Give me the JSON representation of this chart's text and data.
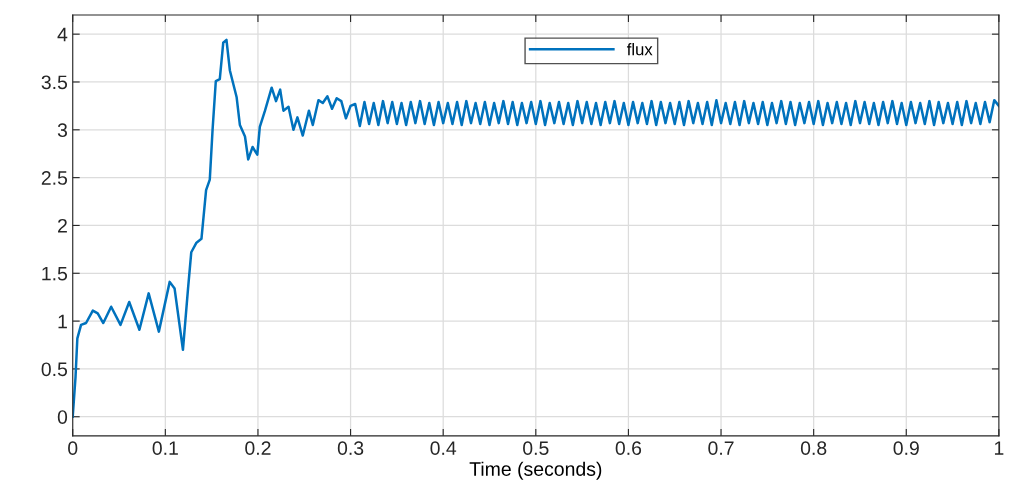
{
  "chart_data": {
    "type": "line",
    "xlabel": "Time (seconds)",
    "xlim": [
      0,
      1
    ],
    "xticks": [
      0,
      0.1,
      0.2,
      0.3,
      0.4,
      0.5,
      0.6,
      0.7,
      0.8,
      0.9,
      1
    ],
    "ylim": [
      -0.2,
      4.2
    ],
    "yticks": [
      0,
      0.5,
      1,
      1.5,
      2,
      2.5,
      3,
      3.5,
      4
    ],
    "grid": true,
    "legend": "top",
    "marker": "none",
    "line_style": "solid",
    "series": [
      {
        "name": "flux",
        "color": "#0072bd",
        "x": [
          0,
          0.003,
          0.005,
          0.009,
          0.0144,
          0.0217,
          0.027,
          0.033,
          0.0415,
          0.0516,
          0.061,
          0.072,
          0.082,
          0.093,
          0.1047,
          0.11,
          0.119,
          0.1245,
          0.128,
          0.1336,
          0.139,
          0.144,
          0.148,
          0.151,
          0.1545,
          0.1588,
          0.1625,
          0.166,
          0.1697,
          0.177,
          0.1805,
          0.186,
          0.1895,
          0.1942,
          0.1993,
          0.202,
          0.2076,
          0.2148,
          0.2195,
          0.224,
          0.2275,
          0.233,
          0.2383,
          0.2426,
          0.2484,
          0.255,
          0.2592,
          0.2653,
          0.27,
          0.275,
          0.28,
          0.285,
          0.29,
          0.295,
          0.3,
          0.305,
          0.31,
          0.315,
          0.32,
          0.325,
          0.33,
          0.335,
          0.34,
          0.345,
          0.35,
          0.355,
          0.36,
          0.365,
          0.37,
          0.375,
          0.38,
          0.385,
          0.39,
          0.395,
          0.4,
          0.405,
          0.41,
          0.415,
          0.42,
          0.425,
          0.43,
          0.435,
          0.44,
          0.445,
          0.45,
          0.455,
          0.46,
          0.465,
          0.47,
          0.475,
          0.48,
          0.485,
          0.49,
          0.495,
          0.5,
          0.505,
          0.51,
          0.515,
          0.52,
          0.525,
          0.53,
          0.535,
          0.54,
          0.545,
          0.55,
          0.555,
          0.56,
          0.565,
          0.57,
          0.575,
          0.58,
          0.585,
          0.59,
          0.595,
          0.6,
          0.605,
          0.61,
          0.615,
          0.62,
          0.625,
          0.63,
          0.635,
          0.64,
          0.645,
          0.65,
          0.655,
          0.66,
          0.665,
          0.67,
          0.675,
          0.68,
          0.685,
          0.69,
          0.695,
          0.7,
          0.705,
          0.71,
          0.715,
          0.72,
          0.725,
          0.73,
          0.735,
          0.74,
          0.745,
          0.75,
          0.755,
          0.76,
          0.765,
          0.77,
          0.775,
          0.78,
          0.785,
          0.79,
          0.795,
          0.8,
          0.805,
          0.81,
          0.815,
          0.82,
          0.825,
          0.83,
          0.835,
          0.84,
          0.845,
          0.85,
          0.855,
          0.86,
          0.865,
          0.87,
          0.875,
          0.88,
          0.885,
          0.89,
          0.895,
          0.9,
          0.905,
          0.91,
          0.915,
          0.92,
          0.925,
          0.93,
          0.935,
          0.94,
          0.945,
          0.95,
          0.955,
          0.96,
          0.965,
          0.97,
          0.975,
          0.98,
          0.985,
          0.99,
          0.995,
          1
        ],
        "values": [
          0,
          0.41,
          0.82,
          0.96,
          0.98,
          1.11,
          1.08,
          0.98,
          1.15,
          0.96,
          1.2,
          0.91,
          1.29,
          0.89,
          1.41,
          1.34,
          0.7,
          1.34,
          1.72,
          1.82,
          1.86,
          2.37,
          2.48,
          3.0,
          3.51,
          3.53,
          3.91,
          3.94,
          3.62,
          3.34,
          3.05,
          2.93,
          2.69,
          2.82,
          2.74,
          3.03,
          3.2,
          3.44,
          3.3,
          3.42,
          3.2,
          3.24,
          3.0,
          3.13,
          2.94,
          3.2,
          3.05,
          3.31,
          3.28,
          3.35,
          3.22,
          3.33,
          3.3,
          3.12,
          3.25,
          3.27,
          3.04,
          3.29,
          3.06,
          3.28,
          3.05,
          3.3,
          3.07,
          3.29,
          3.06,
          3.28,
          3.05,
          3.29,
          3.07,
          3.3,
          3.06,
          3.28,
          3.05,
          3.29,
          3.07,
          3.28,
          3.06,
          3.29,
          3.05,
          3.3,
          3.07,
          3.28,
          3.06,
          3.29,
          3.05,
          3.28,
          3.07,
          3.3,
          3.06,
          3.29,
          3.05,
          3.28,
          3.07,
          3.29,
          3.06,
          3.3,
          3.05,
          3.28,
          3.07,
          3.29,
          3.06,
          3.28,
          3.05,
          3.3,
          3.07,
          3.29,
          3.06,
          3.28,
          3.05,
          3.29,
          3.07,
          3.3,
          3.06,
          3.28,
          3.05,
          3.29,
          3.07,
          3.28,
          3.06,
          3.3,
          3.05,
          3.29,
          3.07,
          3.28,
          3.06,
          3.29,
          3.05,
          3.3,
          3.07,
          3.28,
          3.06,
          3.29,
          3.05,
          3.31,
          3.07,
          3.28,
          3.06,
          3.29,
          3.05,
          3.3,
          3.07,
          3.28,
          3.06,
          3.29,
          3.05,
          3.28,
          3.07,
          3.3,
          3.06,
          3.29,
          3.05,
          3.28,
          3.07,
          3.29,
          3.06,
          3.3,
          3.05,
          3.28,
          3.07,
          3.29,
          3.06,
          3.28,
          3.05,
          3.3,
          3.07,
          3.29,
          3.06,
          3.28,
          3.05,
          3.29,
          3.07,
          3.3,
          3.06,
          3.28,
          3.05,
          3.29,
          3.07,
          3.28,
          3.06,
          3.3,
          3.05,
          3.29,
          3.07,
          3.28,
          3.06,
          3.29,
          3.05,
          3.3,
          3.07,
          3.28,
          3.06,
          3.29,
          3.08,
          3.31,
          3.25
        ]
      }
    ]
  }
}
